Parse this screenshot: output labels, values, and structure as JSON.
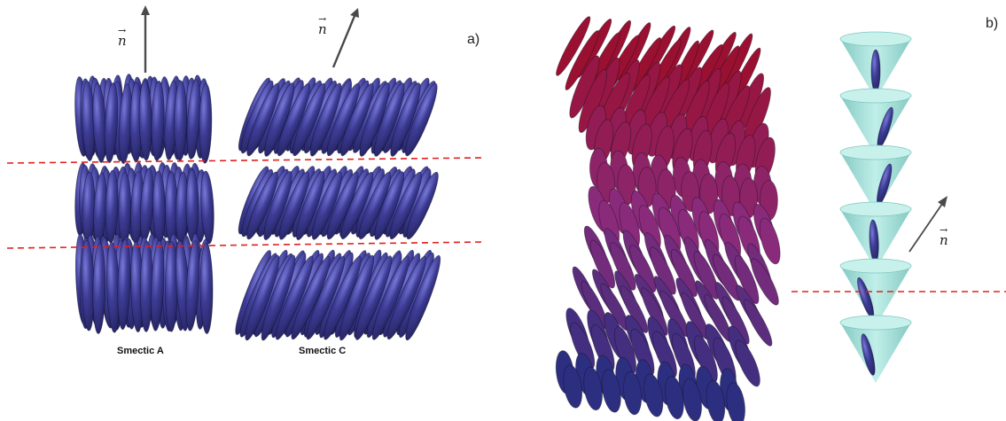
{
  "panels": {
    "a": {
      "label": "a)",
      "left_caption": "Smectic A",
      "right_caption": "Smectic C",
      "director_left": "n",
      "director_right": "n"
    },
    "b": {
      "label": "b)",
      "director": "n"
    }
  },
  "colors": {
    "molecule_blue": "#3b3a8c",
    "molecule_highlight": "#6a6ad0",
    "layer_line": "#e02020",
    "cone": "#8fd3cc",
    "helix_top": "#9a1030",
    "helix_mid": "#8a2a7a",
    "helix_bottom": "#2c2f80",
    "arrow": "#555555"
  },
  "icons": {
    "director_arrow": "arrow-icon"
  }
}
